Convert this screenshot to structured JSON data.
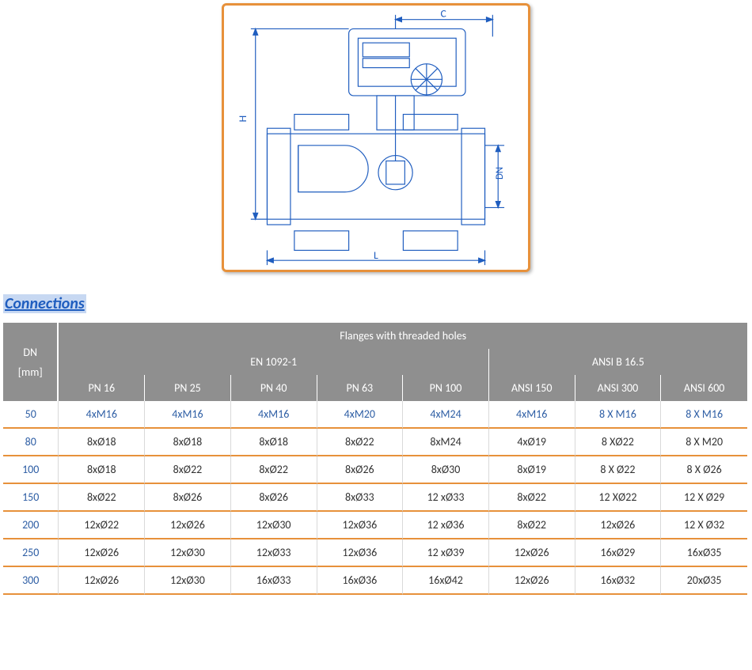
{
  "colors": {
    "frame_border": "#e7913b",
    "section_title_color": "#1f5dbf",
    "section_title_bg": "#c7d8f2",
    "header_bg": "#8f8f8f",
    "row_divider": "#e7913b",
    "blue_text": "#2f5fa5",
    "body_text": "#333333",
    "body_vline": "#d9d9d9",
    "drawing_stroke": "#1f5dbf"
  },
  "section_title": "Connections",
  "drawing": {
    "labels": {
      "C": "C",
      "H": "H",
      "DN": "DN",
      "L": "L"
    }
  },
  "table": {
    "dn_header_top": "DN",
    "dn_header_bottom": "[mm]",
    "super_header": "Flanges with threaded holes",
    "group_a": "EN 1092-1",
    "group_b": "ANSI B 16.5",
    "columns": [
      "PN 16",
      "PN 25",
      "PN 40",
      "PN 63",
      "PN 100",
      "ANSI 150",
      "ANSI 300",
      "ANSI 600"
    ],
    "rows": [
      {
        "dn": "50",
        "vals": [
          "4xM16",
          "4xM16",
          "4xM16",
          "4xM20",
          "4xM24",
          "4xM16",
          "8 X M16",
          "8 X M16"
        ],
        "highlight": true
      },
      {
        "dn": "80",
        "vals": [
          "8xØ18",
          "8xØ18",
          "8xØ18",
          "8xØ22",
          "8xM24",
          "4xØ19",
          "8 XØ22",
          "8 X M20"
        ],
        "highlight": false
      },
      {
        "dn": "100",
        "vals": [
          "8xØ18",
          "8xØ22",
          "8xØ22",
          "8xØ26",
          "8xØ30",
          "8xØ19",
          "8 X Ø22",
          "8 X Ø26"
        ],
        "highlight": false
      },
      {
        "dn": "150",
        "vals": [
          "8xØ22",
          "8xØ26",
          "8xØ26",
          "8xØ33",
          "12 xØ33",
          "8xØ22",
          "12 XØ22",
          "12 X Ø29"
        ],
        "highlight": false
      },
      {
        "dn": "200",
        "vals": [
          "12xØ22",
          "12xØ26",
          "12xØ30",
          "12xØ36",
          "12 xØ36",
          "8xØ22",
          "12xØ26",
          "12 X Ø32"
        ],
        "highlight": false
      },
      {
        "dn": "250",
        "vals": [
          "12xØ26",
          "12xØ30",
          "12xØ33",
          "12xØ36",
          "12 xØ39",
          "12xØ26",
          "16xØ29",
          "16xØ35"
        ],
        "highlight": false
      },
      {
        "dn": "300",
        "vals": [
          "12xØ26",
          "12xØ30",
          "16xØ33",
          "16xØ36",
          "16xØ42",
          "12xØ26",
          "16xØ32",
          "20xØ35"
        ],
        "highlight": false
      }
    ]
  }
}
